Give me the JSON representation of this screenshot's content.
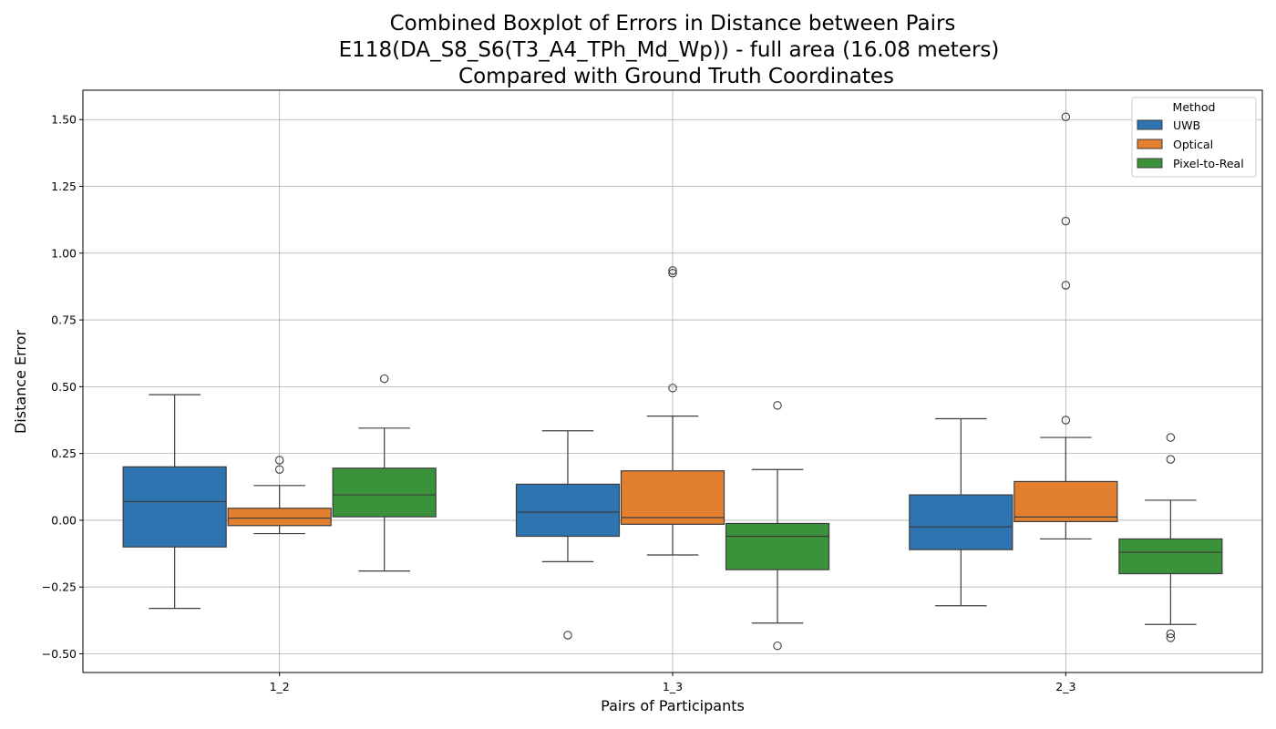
{
  "chart_data": {
    "type": "boxplot",
    "title_lines": [
      "Combined Boxplot of Errors in Distance between Pairs",
      "E118(DA_S8_S6(T3_A4_TPh_Md_Wp)) - full area (16.08 meters)",
      "Compared with Ground Truth Coordinates"
    ],
    "xlabel": "Pairs of Participants",
    "ylabel": "Distance Error",
    "ylim": [
      -0.57,
      1.61
    ],
    "yticks": [
      -0.5,
      -0.25,
      0.0,
      0.25,
      0.5,
      0.75,
      1.0,
      1.25,
      1.5
    ],
    "ytick_labels": [
      "−0.50",
      "−0.25",
      "0.00",
      "0.25",
      "0.50",
      "0.75",
      "1.00",
      "1.25",
      "1.50"
    ],
    "categories": [
      "1_2",
      "1_3",
      "2_3"
    ],
    "grid": true,
    "legend": {
      "title": "Method",
      "position": "top-right"
    },
    "series": [
      {
        "name": "UWB",
        "color": "#2e74b0",
        "boxes": [
          {
            "whisker_low": -0.33,
            "q1": -0.1,
            "median": 0.07,
            "q3": 0.2,
            "whisker_high": 0.47,
            "outliers": []
          },
          {
            "whisker_low": -0.155,
            "q1": -0.06,
            "median": 0.03,
            "q3": 0.135,
            "whisker_high": 0.335,
            "outliers": [
              -0.43
            ]
          },
          {
            "whisker_low": -0.32,
            "q1": -0.11,
            "median": -0.025,
            "q3": 0.095,
            "whisker_high": 0.38,
            "outliers": []
          }
        ]
      },
      {
        "name": "Optical",
        "color": "#e28030",
        "boxes": [
          {
            "whisker_low": -0.05,
            "q1": -0.02,
            "median": 0.008,
            "q3": 0.045,
            "whisker_high": 0.13,
            "outliers": [
              0.19,
              0.225
            ]
          },
          {
            "whisker_low": -0.13,
            "q1": -0.015,
            "median": 0.01,
            "q3": 0.185,
            "whisker_high": 0.39,
            "outliers": [
              0.495,
              0.925,
              0.935
            ]
          },
          {
            "whisker_low": -0.07,
            "q1": -0.005,
            "median": 0.012,
            "q3": 0.145,
            "whisker_high": 0.31,
            "outliers": [
              0.375,
              0.88,
              1.12,
              1.51
            ]
          }
        ]
      },
      {
        "name": "Pixel-to-Real",
        "color": "#3a923a",
        "boxes": [
          {
            "whisker_low": -0.19,
            "q1": 0.013,
            "median": 0.095,
            "q3": 0.195,
            "whisker_high": 0.345,
            "outliers": [
              0.53
            ]
          },
          {
            "whisker_low": -0.385,
            "q1": -0.185,
            "median": -0.06,
            "q3": -0.012,
            "whisker_high": 0.19,
            "outliers": [
              0.43,
              -0.47
            ]
          },
          {
            "whisker_low": -0.39,
            "q1": -0.2,
            "median": -0.12,
            "q3": -0.07,
            "whisker_high": 0.075,
            "outliers": [
              0.31,
              0.228,
              -0.425,
              -0.44
            ]
          }
        ]
      }
    ]
  }
}
